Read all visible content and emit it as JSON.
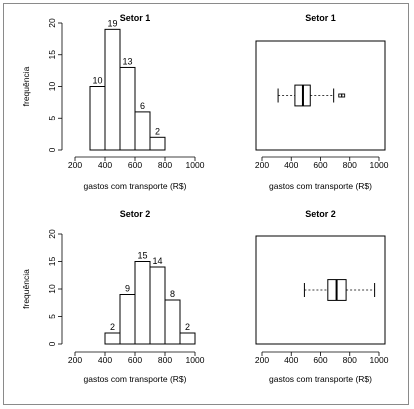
{
  "chart_data": [
    {
      "type": "histogram",
      "title": "Setor 1",
      "xlabel": "gastos com transporte (R$)",
      "ylabel": "frequência",
      "xlim": [
        200,
        1000
      ],
      "ylim": [
        0,
        20
      ],
      "xticks": [
        "200",
        "400",
        "600",
        "800",
        "1000"
      ],
      "yticks": [
        "0",
        "5",
        "10",
        "15",
        "20"
      ],
      "bins": [
        [
          300,
          400
        ],
        [
          400,
          500
        ],
        [
          500,
          600
        ],
        [
          600,
          700
        ],
        [
          700,
          800
        ]
      ],
      "values": [
        10,
        19,
        13,
        6,
        2
      ],
      "value_labels": [
        "10",
        "19",
        "13",
        "6",
        "2"
      ]
    },
    {
      "type": "boxplot",
      "title": "Setor 1",
      "xlabel": "gastos com transporte (R$)",
      "xlim": [
        200,
        1000
      ],
      "xticks": [
        "200",
        "400",
        "600",
        "800",
        "1000"
      ],
      "whisker_low": 310,
      "q1": 425,
      "median": 480,
      "q3": 530,
      "whisker_high": 690,
      "outliers": [
        735,
        755
      ]
    },
    {
      "type": "histogram",
      "title": "Setor 2",
      "xlabel": "gastos com transporte (R$)",
      "ylabel": "frequência",
      "xlim": [
        200,
        1000
      ],
      "ylim": [
        0,
        20
      ],
      "xticks": [
        "200",
        "400",
        "600",
        "800",
        "1000"
      ],
      "yticks": [
        "0",
        "5",
        "10",
        "15",
        "20"
      ],
      "bins": [
        [
          400,
          500
        ],
        [
          500,
          600
        ],
        [
          600,
          700
        ],
        [
          700,
          800
        ],
        [
          800,
          900
        ],
        [
          900,
          1000
        ]
      ],
      "values": [
        2,
        9,
        15,
        14,
        8,
        2
      ],
      "value_labels": [
        "2",
        "9",
        "15",
        "14",
        "8",
        "2"
      ]
    },
    {
      "type": "boxplot",
      "title": "Setor 2",
      "xlabel": "gastos com transporte (R$)",
      "xlim": [
        200,
        1000
      ],
      "xticks": [
        "200",
        "400",
        "600",
        "800",
        "1000"
      ],
      "whisker_low": 490,
      "q1": 650,
      "median": 710,
      "q3": 775,
      "whisker_high": 970,
      "outliers": []
    }
  ]
}
